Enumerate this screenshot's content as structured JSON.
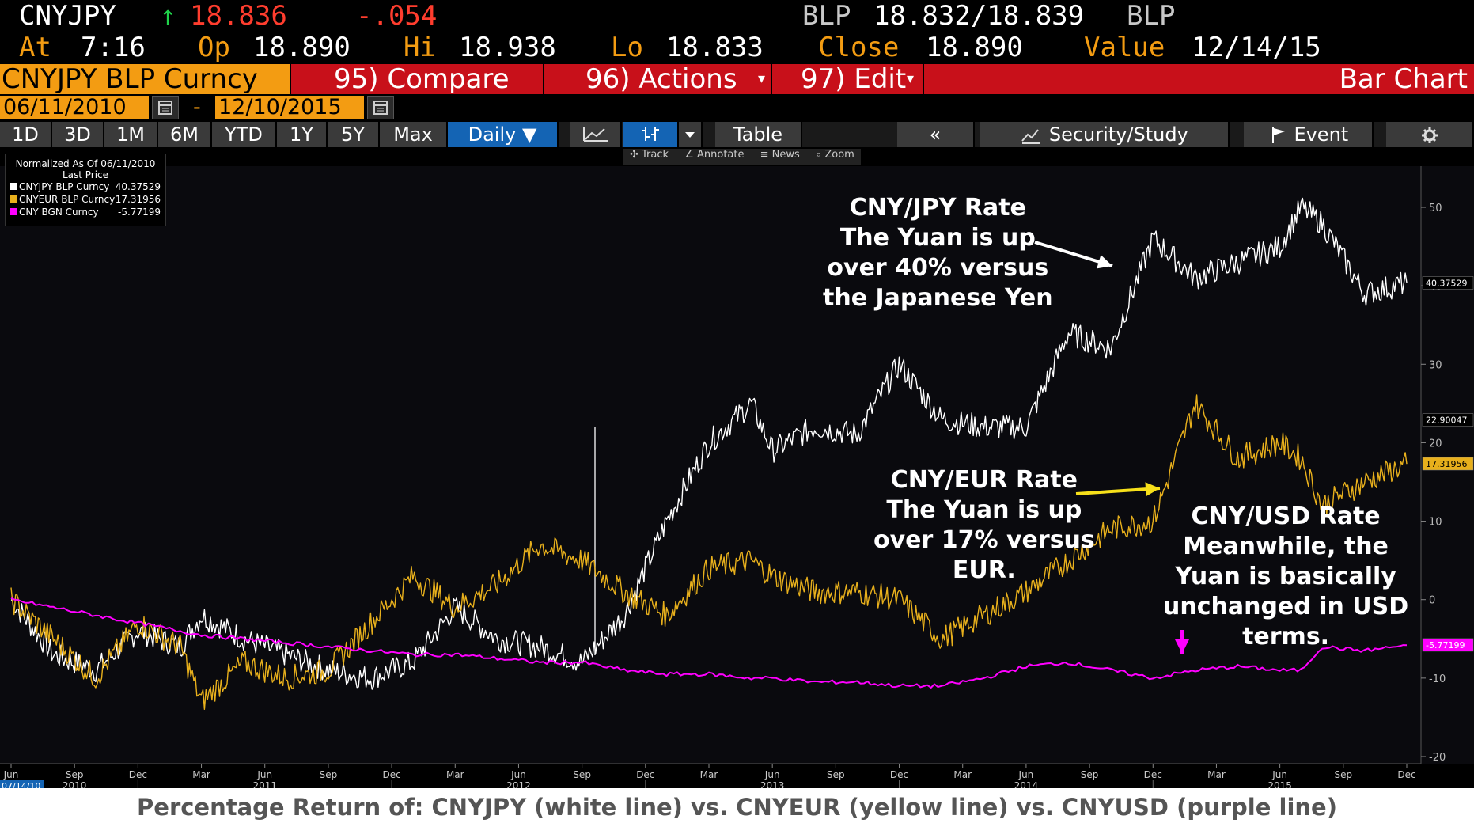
{
  "quote": {
    "ticker": "CNYJPY",
    "arrow": "↑",
    "last": "18.836",
    "change": "-.054",
    "source_label": "BLP",
    "bid_ask": "18.832/18.839",
    "source_label2": "BLP",
    "at_label": "At",
    "time": "7:16",
    "open_label": "Op",
    "open": "18.890",
    "high_label": "Hi",
    "high": "18.938",
    "low_label": "Lo",
    "low": "18.833",
    "close_label": "Close",
    "close": "18.890",
    "value_label": "Value",
    "value_date": "12/14/15"
  },
  "menu": {
    "security": "CNYJPY BLP Curncy",
    "compare": "95) Compare",
    "actions": "96) Actions",
    "edit": "97) Edit",
    "chart_type": "Bar Chart",
    "dropdown_glyph": "▾"
  },
  "dates": {
    "start": "06/11/2010",
    "dash": "-",
    "end": "12/10/2015"
  },
  "tabs": {
    "ranges": [
      "1D",
      "3D",
      "1M",
      "6M",
      "YTD",
      "1Y",
      "5Y",
      "Max"
    ],
    "period": "Daily ▼",
    "table": "Table",
    "collapse": "«",
    "security_study": "Security/Study",
    "event": "Event"
  },
  "tools": {
    "track": "Track",
    "annotate": "Annotate",
    "news": "News",
    "zoom": "Zoom"
  },
  "legend": {
    "header1": "Normalized As Of 06/11/2010",
    "header2": "Last Price",
    "items": [
      {
        "name": "CNYJPY BLP Curncy",
        "value": "40.37529",
        "color": "#ffffff"
      },
      {
        "name": "CNYEUR BLP Curncy",
        "value": "17.31956",
        "color": "#e8b01c"
      },
      {
        "name": "CNY BGN Curncy",
        "value": "-5.77199",
        "color": "#ff00ff"
      }
    ]
  },
  "annotations": {
    "jpy": [
      "CNY/JPY Rate",
      "The Yuan is up",
      "over 40% versus",
      "the Japanese Yen"
    ],
    "eur": [
      "CNY/EUR Rate",
      "The Yuan is up",
      "over 17% versus",
      "EUR."
    ],
    "usd": [
      "CNY/USD Rate",
      "Meanwhile, the",
      "Yuan is basically",
      "unchanged in USD",
      "terms."
    ]
  },
  "caption": "Percentage Return of: CNYJPY (white line) vs. CNYEUR (yellow line) vs. CNYUSD (purple line)",
  "chart_data": {
    "type": "line",
    "y_ticks": [
      "50",
      "40",
      "30",
      "20",
      "10",
      "0",
      "-10",
      "-20"
    ],
    "ylim": [
      -20,
      50
    ],
    "value_tags": [
      {
        "label": "40.37529",
        "value": 40.37529,
        "bg": "#000000",
        "fg": "#ffffff"
      },
      {
        "label": "22.90047",
        "value": 22.90047,
        "bg": "#000000",
        "fg": "#ffffff"
      },
      {
        "label": "17.31956",
        "value": 17.31956,
        "bg": "#e8b01c",
        "fg": "#000000"
      },
      {
        "label": "-5.77199",
        "value": -5.77199,
        "bg": "#ff00ff",
        "fg": "#ffffff"
      }
    ],
    "x_month_labels": [
      "Jun",
      "Sep",
      "Dec",
      "Mar",
      "Jun",
      "Sep",
      "Dec",
      "Mar",
      "Jun",
      "Sep",
      "Dec",
      "Mar",
      "Jun",
      "Sep",
      "Dec",
      "Mar",
      "Jun",
      "Sep",
      "Dec",
      "Mar",
      "Jun",
      "Sep",
      "Dec"
    ],
    "x_year_labels": [
      "2010",
      "2011",
      "2012",
      "2013",
      "2014",
      "2015"
    ],
    "x_start_date": "07/14/10",
    "series": [
      {
        "name": "CNYJPY BLP Curncy",
        "color": "#ffffff",
        "x": [
          "2010-06",
          "2010-08",
          "2010-10",
          "2010-12",
          "2011-02",
          "2011-03",
          "2011-05",
          "2011-07",
          "2011-09",
          "2011-11",
          "2012-01",
          "2012-03",
          "2012-05",
          "2012-07",
          "2012-09",
          "2012-11",
          "2013-01",
          "2013-03",
          "2013-05",
          "2013-06",
          "2013-08",
          "2013-10",
          "2013-12",
          "2014-02",
          "2014-04",
          "2014-06",
          "2014-08",
          "2014-10",
          "2014-12",
          "2015-02",
          "2015-04",
          "2015-06",
          "2015-07",
          "2015-08",
          "2015-10",
          "2015-12"
        ],
        "values": [
          0,
          -7,
          -9,
          -4,
          -6,
          -2,
          -5,
          -7,
          -9,
          -10,
          -8,
          -1,
          -5,
          -6,
          -8,
          -2,
          10,
          20,
          25,
          19,
          22,
          21,
          30,
          23,
          22,
          22,
          34,
          32,
          46,
          41,
          43,
          45,
          50,
          48,
          39,
          40.4
        ]
      },
      {
        "name": "CNYEUR BLP Curncy",
        "color": "#e8b01c",
        "x": [
          "2010-06",
          "2010-08",
          "2010-10",
          "2010-12",
          "2011-02",
          "2011-03",
          "2011-05",
          "2011-07",
          "2011-09",
          "2011-11",
          "2012-01",
          "2012-03",
          "2012-05",
          "2012-07",
          "2012-09",
          "2012-11",
          "2013-01",
          "2013-03",
          "2013-05",
          "2013-06",
          "2013-08",
          "2013-10",
          "2013-12",
          "2014-02",
          "2014-04",
          "2014-06",
          "2014-08",
          "2014-10",
          "2014-12",
          "2015-02",
          "2015-04",
          "2015-06",
          "2015-07",
          "2015-08",
          "2015-10",
          "2015-12"
        ],
        "values": [
          0,
          -5,
          -10,
          -3,
          -6,
          -13,
          -8,
          -10,
          -9,
          -3,
          3,
          -1,
          2,
          7,
          5,
          1,
          -2,
          4,
          5,
          3,
          1,
          1,
          0,
          -5,
          -2,
          1,
          5,
          9,
          10,
          25,
          18,
          20,
          18,
          12,
          15,
          17.3
        ]
      },
      {
        "name": "CNY BGN Curncy",
        "color": "#ff00ff",
        "x": [
          "2010-06",
          "2010-08",
          "2010-10",
          "2010-12",
          "2011-02",
          "2011-03",
          "2011-05",
          "2011-07",
          "2011-09",
          "2011-11",
          "2012-01",
          "2012-03",
          "2012-05",
          "2012-07",
          "2012-09",
          "2012-11",
          "2013-01",
          "2013-03",
          "2013-05",
          "2013-06",
          "2013-08",
          "2013-10",
          "2013-12",
          "2014-02",
          "2014-04",
          "2014-06",
          "2014-08",
          "2014-10",
          "2014-12",
          "2015-02",
          "2015-04",
          "2015-06",
          "2015-07",
          "2015-08",
          "2015-10",
          "2015-12"
        ],
        "values": [
          0,
          -1,
          -2,
          -3,
          -4,
          -4.5,
          -5,
          -5.5,
          -6,
          -6.5,
          -7,
          -7,
          -7.5,
          -8,
          -8,
          -9,
          -9.5,
          -9.5,
          -10,
          -10,
          -10.5,
          -10.5,
          -11,
          -11,
          -10,
          -8.5,
          -8,
          -9,
          -10,
          -9,
          -8.5,
          -9,
          -9,
          -6,
          -6.5,
          -5.8
        ]
      }
    ]
  }
}
